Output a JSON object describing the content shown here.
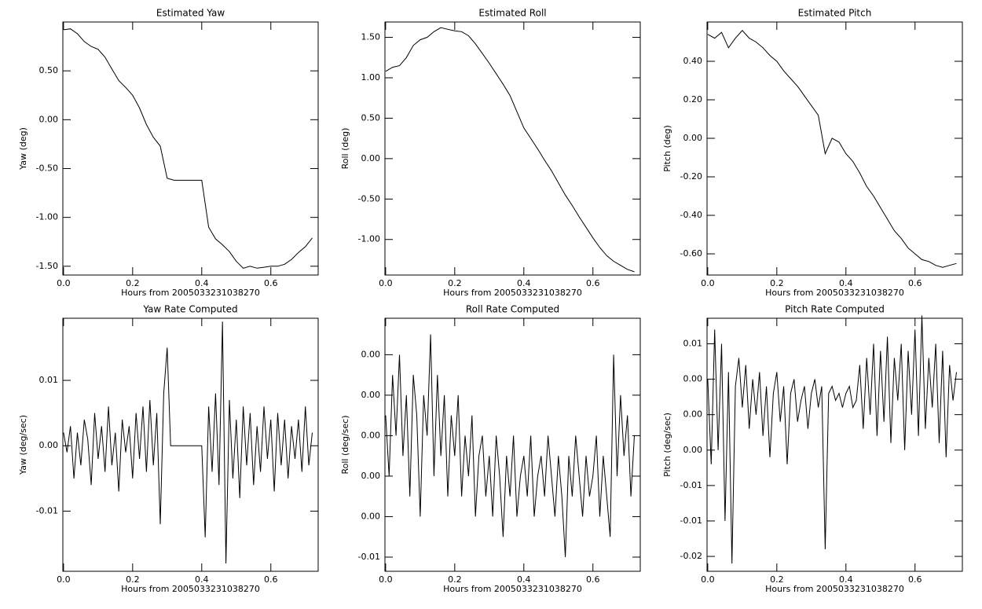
{
  "chart_data": [
    {
      "type": "line",
      "title": "Estimated Yaw",
      "xlabel": "Hours from 2005033231038270",
      "ylabel": "Yaw (deg)",
      "color": "#000000",
      "x": [
        0,
        0.02,
        0.04,
        0.06,
        0.08,
        0.1,
        0.12,
        0.14,
        0.16,
        0.18,
        0.2,
        0.22,
        0.24,
        0.26,
        0.28,
        0.3,
        0.32,
        0.34,
        0.36,
        0.38,
        0.4,
        0.42,
        0.44,
        0.46,
        0.48,
        0.5,
        0.52,
        0.54,
        0.56,
        0.58,
        0.6,
        0.62,
        0.64,
        0.66,
        0.68,
        0.7,
        0.72
      ],
      "values": [
        0.92,
        0.93,
        0.88,
        0.8,
        0.75,
        0.72,
        0.64,
        0.52,
        0.4,
        0.33,
        0.25,
        0.12,
        -0.05,
        -0.18,
        -0.27,
        -0.6,
        -0.62,
        -0.62,
        -0.62,
        -0.62,
        -0.62,
        -1.1,
        -1.22,
        -1.28,
        -1.35,
        -1.45,
        -1.52,
        -1.5,
        -1.52,
        -1.51,
        -1.5,
        -1.5,
        -1.48,
        -1.43,
        -1.36,
        -1.3,
        -1.21
      ],
      "xlim": [
        -0.002,
        0.737
      ],
      "ylim": [
        -1.59,
        1.0
      ],
      "xticks": [
        {
          "value": 0,
          "label": "0.0"
        },
        {
          "value": 0.2,
          "label": "0.2"
        },
        {
          "value": 0.4,
          "label": "0.4"
        },
        {
          "value": 0.6,
          "label": "0.6"
        }
      ],
      "yticks": [
        {
          "value": -1.5,
          "label": "-1.50"
        },
        {
          "value": -1,
          "label": "-1.00"
        },
        {
          "value": -0.5,
          "label": "-0.50"
        },
        {
          "value": 0,
          "label": "0.00"
        },
        {
          "value": 0.5,
          "label": "0.50"
        }
      ]
    },
    {
      "type": "line",
      "title": "Estimated Roll",
      "xlabel": "Hours from 2005033231038270",
      "ylabel": "Roll (deg)",
      "color": "#000000",
      "x": [
        0,
        0.02,
        0.04,
        0.06,
        0.08,
        0.1,
        0.12,
        0.14,
        0.16,
        0.18,
        0.2,
        0.22,
        0.24,
        0.26,
        0.28,
        0.3,
        0.32,
        0.34,
        0.36,
        0.38,
        0.4,
        0.42,
        0.44,
        0.46,
        0.48,
        0.5,
        0.52,
        0.54,
        0.56,
        0.58,
        0.6,
        0.62,
        0.64,
        0.66,
        0.68,
        0.7,
        0.72
      ],
      "values": [
        1.08,
        1.13,
        1.15,
        1.25,
        1.4,
        1.47,
        1.5,
        1.57,
        1.62,
        1.6,
        1.58,
        1.57,
        1.52,
        1.42,
        1.3,
        1.18,
        1.05,
        0.92,
        0.78,
        0.58,
        0.38,
        0.25,
        0.12,
        -0.02,
        -0.15,
        -0.3,
        -0.45,
        -0.58,
        -0.72,
        -0.85,
        -0.98,
        -1.1,
        -1.2,
        -1.27,
        -1.32,
        -1.37,
        -1.4
      ],
      "xlim": [
        -0.002,
        0.737
      ],
      "ylim": [
        -1.44,
        1.69
      ],
      "xticks": [
        {
          "value": 0,
          "label": "0.0"
        },
        {
          "value": 0.2,
          "label": "0.2"
        },
        {
          "value": 0.4,
          "label": "0.4"
        },
        {
          "value": 0.6,
          "label": "0.6"
        }
      ],
      "yticks": [
        {
          "value": -1,
          "label": "-1.00"
        },
        {
          "value": -0.5,
          "label": "-0.50"
        },
        {
          "value": 0,
          "label": "0.00"
        },
        {
          "value": 0.5,
          "label": "0.50"
        },
        {
          "value": 1,
          "label": "1.00"
        },
        {
          "value": 1.5,
          "label": "1.50"
        }
      ]
    },
    {
      "type": "line",
      "title": "Estimated Pitch",
      "xlabel": "Hours from 2005033231038270",
      "ylabel": "Pitch (deg)",
      "color": "#000000",
      "x": [
        0,
        0.02,
        0.04,
        0.06,
        0.08,
        0.1,
        0.12,
        0.14,
        0.16,
        0.18,
        0.2,
        0.22,
        0.24,
        0.26,
        0.28,
        0.3,
        0.32,
        0.34,
        0.36,
        0.38,
        0.4,
        0.42,
        0.44,
        0.46,
        0.48,
        0.5,
        0.52,
        0.54,
        0.56,
        0.58,
        0.6,
        0.62,
        0.64,
        0.66,
        0.68,
        0.7,
        0.72
      ],
      "values": [
        0.54,
        0.52,
        0.55,
        0.47,
        0.52,
        0.56,
        0.52,
        0.5,
        0.47,
        0.43,
        0.4,
        0.35,
        0.31,
        0.27,
        0.22,
        0.17,
        0.12,
        -0.08,
        0.0,
        -0.02,
        -0.08,
        -0.12,
        -0.18,
        -0.25,
        -0.3,
        -0.36,
        -0.42,
        -0.48,
        -0.52,
        -0.57,
        -0.6,
        -0.63,
        -0.64,
        -0.66,
        -0.67,
        -0.66,
        -0.65
      ],
      "xlim": [
        -0.002,
        0.737
      ],
      "ylim": [
        -0.71,
        0.604
      ],
      "xticks": [
        {
          "value": 0,
          "label": "0.0"
        },
        {
          "value": 0.2,
          "label": "0.2"
        },
        {
          "value": 0.4,
          "label": "0.4"
        },
        {
          "value": 0.6,
          "label": "0.6"
        }
      ],
      "yticks": [
        {
          "value": -0.6,
          "label": "-0.60"
        },
        {
          "value": -0.4,
          "label": "-0.40"
        },
        {
          "value": -0.2,
          "label": "-0.20"
        },
        {
          "value": 0,
          "label": "0.00"
        },
        {
          "value": 0.2,
          "label": "0.20"
        },
        {
          "value": 0.4,
          "label": "0.40"
        }
      ]
    },
    {
      "type": "line",
      "title": "Yaw Rate Computed",
      "xlabel": "Hours from 2005033231038270",
      "ylabel": "Yaw (deg/sec)",
      "color": "#000000",
      "x": [
        0,
        0.01,
        0.02,
        0.03,
        0.04,
        0.05,
        0.06,
        0.07,
        0.08,
        0.09,
        0.1,
        0.11,
        0.12,
        0.13,
        0.14,
        0.15,
        0.16,
        0.17,
        0.18,
        0.19,
        0.2,
        0.21,
        0.22,
        0.23,
        0.24,
        0.25,
        0.26,
        0.27,
        0.28,
        0.29,
        0.3,
        0.31,
        0.32,
        0.33,
        0.34,
        0.35,
        0.36,
        0.37,
        0.38,
        0.39,
        0.4,
        0.41,
        0.42,
        0.43,
        0.44,
        0.45,
        0.46,
        0.47,
        0.48,
        0.49,
        0.5,
        0.51,
        0.52,
        0.53,
        0.54,
        0.55,
        0.56,
        0.57,
        0.58,
        0.59,
        0.6,
        0.61,
        0.62,
        0.63,
        0.64,
        0.65,
        0.66,
        0.67,
        0.68,
        0.69,
        0.7,
        0.71,
        0.72
      ],
      "values": [
        0.002,
        -0.001,
        0.003,
        -0.005,
        0.002,
        -0.003,
        0.004,
        0.001,
        -0.006,
        0.005,
        -0.002,
        0.003,
        -0.004,
        0.006,
        -0.003,
        0.002,
        -0.007,
        0.004,
        -0.001,
        0.003,
        -0.005,
        0.005,
        -0.002,
        0.006,
        -0.004,
        0.007,
        -0.003,
        0.005,
        -0.012,
        0.008,
        0.015,
        0,
        0,
        0,
        0,
        0,
        0,
        0,
        0,
        0,
        0,
        -0.014,
        0.006,
        -0.004,
        0.008,
        -0.006,
        0.019,
        -0.018,
        0.007,
        -0.005,
        0.004,
        -0.008,
        0.006,
        -0.003,
        0.005,
        -0.006,
        0.003,
        -0.004,
        0.006,
        -0.002,
        0.004,
        -0.007,
        0.005,
        -0.003,
        0.004,
        -0.005,
        0.003,
        -0.002,
        0.004,
        -0.004,
        0.006,
        -0.003,
        0.002
      ],
      "xlim": [
        -0.002,
        0.737
      ],
      "ylim": [
        -0.0192,
        0.0195
      ],
      "xticks": [
        {
          "value": 0,
          "label": "0.0"
        },
        {
          "value": 0.2,
          "label": "0.2"
        },
        {
          "value": 0.4,
          "label": "0.4"
        },
        {
          "value": 0.6,
          "label": "0.6"
        }
      ],
      "yticks": [
        {
          "value": -0.01,
          "label": "-0.01"
        },
        {
          "value": 0,
          "label": "0.00"
        },
        {
          "value": 0.01,
          "label": "0.01"
        }
      ]
    },
    {
      "type": "line",
      "title": "Roll Rate Computed",
      "xlabel": "Hours from 2005033231038270",
      "ylabel": "Roll (deg/sec)",
      "color": "#000000",
      "x": [
        0,
        0.01,
        0.02,
        0.03,
        0.04,
        0.05,
        0.06,
        0.07,
        0.08,
        0.09,
        0.1,
        0.11,
        0.12,
        0.13,
        0.14,
        0.15,
        0.16,
        0.17,
        0.18,
        0.19,
        0.2,
        0.21,
        0.22,
        0.23,
        0.24,
        0.25,
        0.26,
        0.27,
        0.28,
        0.29,
        0.3,
        0.31,
        0.32,
        0.33,
        0.34,
        0.35,
        0.36,
        0.37,
        0.38,
        0.39,
        0.4,
        0.41,
        0.42,
        0.43,
        0.44,
        0.45,
        0.46,
        0.47,
        0.48,
        0.49,
        0.5,
        0.51,
        0.52,
        0.53,
        0.54,
        0.55,
        0.56,
        0.57,
        0.58,
        0.59,
        0.6,
        0.61,
        0.62,
        0.63,
        0.64,
        0.65,
        0.66,
        0.67,
        0.68,
        0.69,
        0.7,
        0.71,
        0.72
      ],
      "values": [
        0.001,
        -0.002,
        0.003,
        0.0,
        0.004,
        -0.001,
        0.002,
        -0.003,
        0.003,
        0.001,
        -0.004,
        0.002,
        0.0,
        0.005,
        -0.002,
        0.003,
        -0.001,
        0.002,
        -0.003,
        0.001,
        -0.001,
        0.002,
        -0.003,
        0.0,
        -0.002,
        0.001,
        -0.004,
        -0.001,
        0.0,
        -0.003,
        -0.001,
        -0.004,
        0.0,
        -0.002,
        -0.005,
        -0.001,
        -0.003,
        0.0,
        -0.004,
        -0.002,
        -0.001,
        -0.003,
        0.0,
        -0.004,
        -0.002,
        -0.001,
        -0.003,
        0.0,
        -0.002,
        -0.004,
        -0.001,
        -0.003,
        -0.006,
        -0.001,
        -0.003,
        0.0,
        -0.002,
        -0.004,
        -0.001,
        -0.003,
        -0.002,
        0.0,
        -0.004,
        -0.001,
        -0.003,
        -0.005,
        0.004,
        -0.002,
        0.002,
        -0.001,
        0.001,
        -0.003,
        0.0
      ],
      "xlim": [
        -0.002,
        0.737
      ],
      "ylim": [
        -0.0067,
        0.0058
      ],
      "xticks": [
        {
          "value": 0,
          "label": "0.0"
        },
        {
          "value": 0.2,
          "label": "0.2"
        },
        {
          "value": 0.4,
          "label": "0.4"
        },
        {
          "value": 0.6,
          "label": "0.6"
        }
      ],
      "yticks": [
        {
          "value": -0.006,
          "label": "-0.01"
        },
        {
          "value": -0.004,
          "label": "0.00"
        },
        {
          "value": -0.002,
          "label": "0.00"
        },
        {
          "value": 0,
          "label": "0.00"
        },
        {
          "value": 0.002,
          "label": "0.00"
        },
        {
          "value": 0.004,
          "label": "0.00"
        }
      ]
    },
    {
      "type": "line",
      "title": "Pitch Rate Computed",
      "xlabel": "Hours from 2005033231038270",
      "ylabel": "Pitch (deg/sec)",
      "color": "#000000",
      "x": [
        0,
        0.01,
        0.02,
        0.03,
        0.04,
        0.05,
        0.06,
        0.07,
        0.08,
        0.09,
        0.1,
        0.11,
        0.12,
        0.13,
        0.14,
        0.15,
        0.16,
        0.17,
        0.18,
        0.19,
        0.2,
        0.21,
        0.22,
        0.23,
        0.24,
        0.25,
        0.26,
        0.27,
        0.28,
        0.29,
        0.3,
        0.31,
        0.32,
        0.33,
        0.34,
        0.35,
        0.36,
        0.37,
        0.38,
        0.39,
        0.4,
        0.41,
        0.42,
        0.43,
        0.44,
        0.45,
        0.46,
        0.47,
        0.48,
        0.49,
        0.5,
        0.51,
        0.52,
        0.53,
        0.54,
        0.55,
        0.56,
        0.57,
        0.58,
        0.59,
        0.6,
        0.61,
        0.62,
        0.63,
        0.64,
        0.65,
        0.66,
        0.67,
        0.68,
        0.69,
        0.7,
        0.71,
        0.72
      ],
      "values": [
        0.005,
        -0.007,
        0.012,
        -0.005,
        0.01,
        -0.015,
        0.006,
        -0.021,
        0.004,
        0.008,
        0.001,
        0.007,
        -0.002,
        0.005,
        0.0,
        0.006,
        -0.003,
        0.004,
        -0.006,
        0.003,
        0.006,
        -0.001,
        0.004,
        -0.007,
        0.003,
        0.005,
        -0.001,
        0.002,
        0.004,
        -0.002,
        0.003,
        0.005,
        0.001,
        0.004,
        -0.019,
        0.003,
        0.004,
        0.002,
        0.003,
        0.001,
        0.003,
        0.004,
        0.001,
        0.002,
        0.007,
        -0.002,
        0.008,
        0.0,
        0.01,
        -0.003,
        0.009,
        -0.001,
        0.011,
        -0.004,
        0.008,
        0.002,
        0.01,
        -0.005,
        0.009,
        0.0,
        0.012,
        -0.003,
        0.014,
        -0.002,
        0.008,
        0.001,
        0.01,
        -0.004,
        0.009,
        -0.006,
        0.007,
        0.002,
        0.006
      ],
      "xlim": [
        -0.002,
        0.737
      ],
      "ylim": [
        -0.0221,
        0.0136
      ],
      "xticks": [
        {
          "value": 0,
          "label": "0.0"
        },
        {
          "value": 0.2,
          "label": "0.2"
        },
        {
          "value": 0.4,
          "label": "0.4"
        },
        {
          "value": 0.6,
          "label": "0.6"
        }
      ],
      "yticks": [
        {
          "value": -0.02,
          "label": "-0.02"
        },
        {
          "value": -0.015,
          "label": "-0.01"
        },
        {
          "value": -0.01,
          "label": "-0.01"
        },
        {
          "value": -0.005,
          "label": "0.00"
        },
        {
          "value": 0,
          "label": "0.00"
        },
        {
          "value": 0.005,
          "label": "0.00"
        },
        {
          "value": 0.01,
          "label": "0.01"
        }
      ]
    }
  ]
}
